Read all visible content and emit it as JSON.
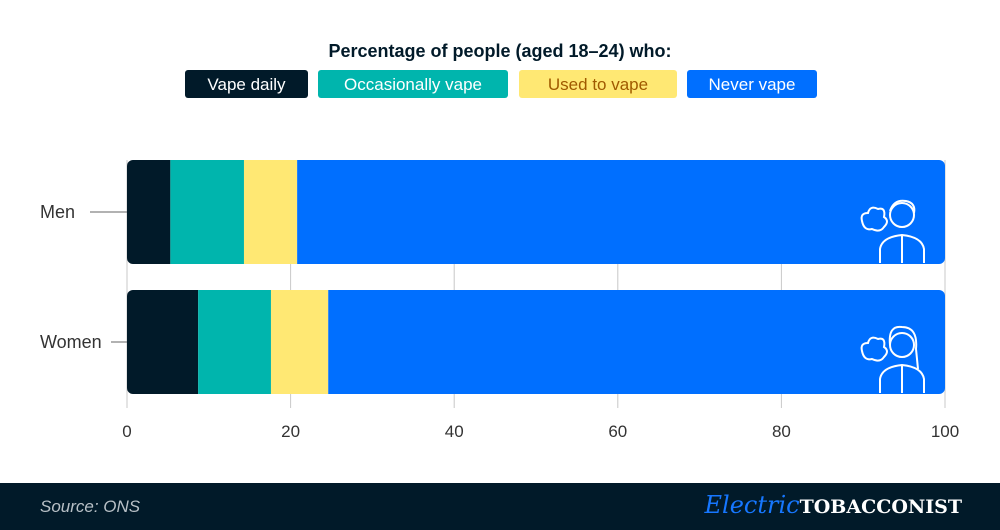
{
  "chart_data": {
    "type": "bar",
    "orientation": "horizontal",
    "stacked": true,
    "title": "Percentage of people (aged 18–24) who:",
    "categories": [
      "Men",
      "Women"
    ],
    "series": [
      {
        "name": "Vape daily",
        "color": "#011a29",
        "text_color": "#ffffff",
        "values": [
          5.3,
          8.7
        ]
      },
      {
        "name": "Occasionally vape",
        "color": "#00b5ad",
        "text_color": "#ffffff",
        "values": [
          9.0,
          8.9
        ]
      },
      {
        "name": "Used to vape",
        "color": "#ffe873",
        "text_color": "#a05a00",
        "values": [
          6.5,
          7.0
        ]
      },
      {
        "name": "Never vape",
        "color": "#006fff",
        "text_color": "#ffffff",
        "values": [
          79.2,
          75.4
        ]
      }
    ],
    "xlim": [
      0,
      100
    ],
    "xticks": [
      "0",
      "20",
      "40",
      "60",
      "80",
      "100"
    ],
    "grid": true,
    "legend": "top-center",
    "icons": [
      "man-vaping-icon",
      "woman-vaping-icon"
    ]
  },
  "footer": {
    "source": "Source: ONS",
    "logo_script": "Electric",
    "logo_caps": "TOBACCONIST"
  }
}
